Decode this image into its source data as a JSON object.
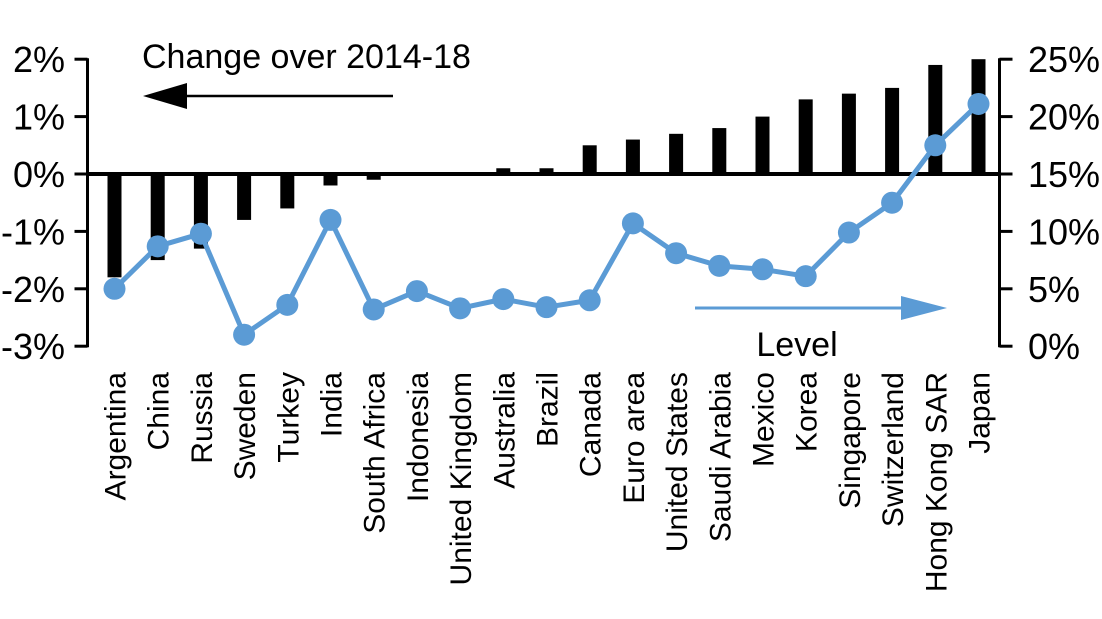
{
  "chart_data": {
    "type": "combo",
    "title": "",
    "categories": [
      "Argentina",
      "China",
      "Russia",
      "Sweden",
      "Turkey",
      "India",
      "South Africa",
      "Indonesia",
      "United Kingdom",
      "Australia",
      "Brazil",
      "Canada",
      "Euro area",
      "United States",
      "Saudi Arabia",
      "Mexico",
      "Korea",
      "Singapore",
      "Switzerland",
      "Hong Kong SAR",
      "Japan"
    ],
    "series": [
      {
        "name": "Change over 2014-18",
        "type": "bar",
        "axis": "left",
        "color": "#000000",
        "unit": "percentage points",
        "values": [
          -1.8,
          -1.5,
          -1.3,
          -0.8,
          -0.6,
          -0.2,
          -0.1,
          0.0,
          0.0,
          0.1,
          0.1,
          0.5,
          0.6,
          0.7,
          0.8,
          1.0,
          1.3,
          1.4,
          1.5,
          1.9,
          2.0
        ]
      },
      {
        "name": "Level",
        "type": "line",
        "axis": "right",
        "color": "#5b9bd5",
        "unit": "%",
        "values": [
          5.0,
          8.7,
          9.8,
          1.0,
          3.6,
          11.0,
          3.2,
          4.8,
          3.3,
          4.1,
          3.4,
          4.0,
          10.7,
          8.1,
          7.0,
          6.7,
          6.1,
          9.9,
          12.5,
          17.5,
          21.1
        ]
      }
    ],
    "left_axis": {
      "tick_labels": [
        "2%",
        "1%",
        "0%",
        "-1%",
        "-2%",
        "-3%"
      ],
      "min": -3,
      "max": 2,
      "step": 1
    },
    "right_axis": {
      "tick_labels": [
        "25%",
        "20%",
        "15%",
        "10%",
        "5%",
        "0%"
      ],
      "min": 0,
      "max": 25,
      "step": 5
    },
    "annotations": [
      {
        "text": "Change over 2014-18",
        "arrow": "left",
        "color": "#000000"
      },
      {
        "text": "Level",
        "arrow": "right",
        "color": "#5b9bd5"
      }
    ],
    "grid": false,
    "legend_position": "none"
  }
}
